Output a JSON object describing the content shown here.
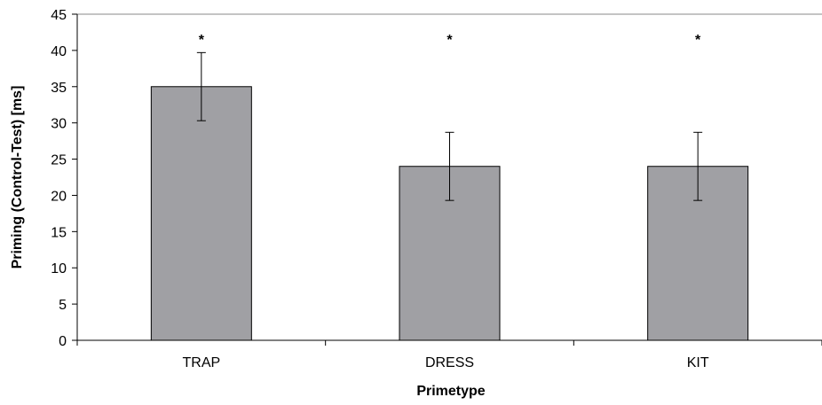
{
  "chart_data": {
    "type": "bar",
    "title": "",
    "xlabel": "Primetype",
    "ylabel": "Priming (Control-Test) [ms]",
    "categories": [
      "TRAP",
      "DRESS",
      "KIT"
    ],
    "values": [
      35,
      24,
      24
    ],
    "error_bars": [
      {
        "low": 30.3,
        "high": 39.7
      },
      {
        "low": 19.3,
        "high": 28.7
      },
      {
        "low": 19.3,
        "high": 28.7
      }
    ],
    "annotations": [
      "*",
      "*",
      "*"
    ],
    "ylim": [
      0,
      45
    ],
    "yticks": [
      0,
      5,
      10,
      15,
      20,
      25,
      30,
      35,
      40,
      45
    ],
    "bar_color": "#a0a0a4",
    "grid": false,
    "legend": "none"
  }
}
